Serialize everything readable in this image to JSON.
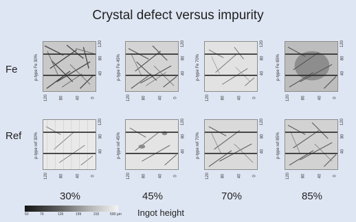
{
  "figure": {
    "title": "Crystal defect versus impurity",
    "rows": [
      {
        "label": "Fe",
        "panels": [
          {
            "side_label": "p-type Fe 30%"
          },
          {
            "side_label": "p-type Fe 45%"
          },
          {
            "side_label": "p-type Fe 70%"
          },
          {
            "side_label": "p-type Fe 85%"
          }
        ]
      },
      {
        "label": "Ref",
        "panels": [
          {
            "side_label": "p-type ref 30%"
          },
          {
            "side_label": "p-type ref 45%"
          },
          {
            "side_label": "p-type ref 70%"
          },
          {
            "side_label": "p-type ref 85%"
          }
        ]
      }
    ],
    "column_labels": [
      "30%",
      "45%",
      "70%",
      "85%"
    ],
    "axis_ticks": [
      "120",
      "80",
      "40",
      "0"
    ],
    "x_axis_title": "Ingot height",
    "colorbar_ticks": [
      "50",
      "79",
      "126",
      "199",
      "315",
      "500 µm"
    ]
  }
}
